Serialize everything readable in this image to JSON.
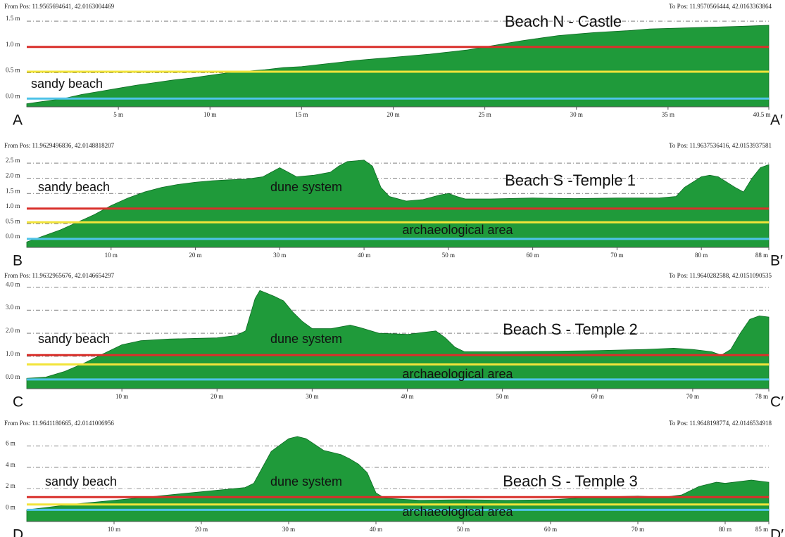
{
  "chart_data": [
    {
      "type": "area",
      "from_pos": "From Pos: 11.9565694641, 42.0163004469",
      "to_pos": "To Pos: 11.9570566444, 42.0163363864",
      "start_label": "A",
      "end_label": "A′",
      "annotations": [
        "Beach N - Castle",
        "sandy beach"
      ],
      "color": "#1f9a3a",
      "x": [
        0,
        1,
        2,
        3,
        4,
        5,
        6,
        7,
        8,
        9,
        10,
        11,
        12,
        13,
        14,
        15,
        16,
        17,
        18,
        19,
        20,
        21,
        22,
        23,
        24,
        25,
        26,
        27,
        28,
        29,
        30,
        31,
        32,
        33,
        34,
        35,
        36,
        37,
        38,
        39,
        40.5
      ],
      "values": [
        -0.1,
        -0.05,
        0.0,
        0.08,
        0.14,
        0.2,
        0.26,
        0.31,
        0.36,
        0.4,
        0.45,
        0.5,
        0.53,
        0.56,
        0.6,
        0.62,
        0.66,
        0.7,
        0.74,
        0.77,
        0.8,
        0.83,
        0.86,
        0.9,
        0.94,
        1.0,
        1.06,
        1.12,
        1.17,
        1.22,
        1.25,
        1.28,
        1.3,
        1.32,
        1.35,
        1.36,
        1.37,
        1.38,
        1.39,
        1.4,
        1.42
      ],
      "reference_lines": [
        {
          "value": 1.0,
          "color": "#d9302b"
        },
        {
          "value": 0.52,
          "color": "#f2e43a"
        },
        {
          "value": 0.0,
          "color": "#4fc3e8"
        }
      ],
      "xlim": [
        0,
        40.5
      ],
      "ylim": [
        -0.16,
        1.61
      ],
      "xticks": [
        {
          "value": 5,
          "label": "5 m"
        },
        {
          "value": 10,
          "label": "10 m"
        },
        {
          "value": 15,
          "label": "15 m"
        },
        {
          "value": 20,
          "label": "20 m"
        },
        {
          "value": 25,
          "label": "25 m"
        },
        {
          "value": 30,
          "label": "30 m"
        },
        {
          "value": 35,
          "label": "35 m"
        },
        {
          "value": 40.5,
          "label": "40.5 m"
        }
      ],
      "yticks": [
        {
          "value": 1.5,
          "label": "1.5 m"
        },
        {
          "value": 1.0,
          "label": "1.0 m"
        },
        {
          "value": 0.5,
          "label": "0.5 m"
        },
        {
          "value": 0.0,
          "label": "0.0 m"
        }
      ]
    },
    {
      "type": "area",
      "from_pos": "From Pos: 11.9629496836, 42.0148818207",
      "to_pos": "To Pos: 11.9637536416, 42.0153937581",
      "start_label": "B",
      "end_label": "B′",
      "annotations": [
        "sandy beach",
        "dune system",
        "Beach S -Temple 1",
        "archaeological area"
      ],
      "color": "#1f9a3a",
      "x": [
        0,
        2,
        4,
        6,
        8,
        10,
        12,
        14,
        16,
        18,
        20,
        22,
        24,
        26,
        28,
        30,
        31,
        32,
        34,
        36,
        37,
        38,
        40,
        41,
        42,
        43,
        45,
        47,
        49,
        50,
        51,
        52,
        55,
        60,
        65,
        70,
        75,
        77,
        78,
        80,
        81,
        82,
        84,
        85,
        86,
        87,
        88
      ],
      "values": [
        -0.1,
        0.1,
        0.3,
        0.55,
        0.8,
        1.1,
        1.35,
        1.55,
        1.7,
        1.8,
        1.87,
        1.92,
        1.95,
        1.97,
        2.05,
        2.35,
        2.2,
        2.05,
        2.1,
        2.2,
        2.4,
        2.55,
        2.6,
        2.4,
        1.7,
        1.4,
        1.25,
        1.3,
        1.45,
        1.5,
        1.4,
        1.32,
        1.32,
        1.35,
        1.33,
        1.35,
        1.35,
        1.4,
        1.7,
        2.05,
        2.1,
        2.05,
        1.7,
        1.55,
        2.0,
        2.35,
        2.45
      ],
      "reference_lines": [
        {
          "value": 1.0,
          "color": "#d9302b"
        },
        {
          "value": 0.55,
          "color": "#f2e43a"
        },
        {
          "value": 0.0,
          "color": "#4fc3e8"
        }
      ],
      "xlim": [
        0,
        88
      ],
      "ylim": [
        -0.28,
        2.78
      ],
      "xticks": [
        {
          "value": 10,
          "label": "10 m"
        },
        {
          "value": 20,
          "label": "20 m"
        },
        {
          "value": 30,
          "label": "30 m"
        },
        {
          "value": 40,
          "label": "40 m"
        },
        {
          "value": 50,
          "label": "50 m"
        },
        {
          "value": 60,
          "label": "60 m"
        },
        {
          "value": 70,
          "label": "70 m"
        },
        {
          "value": 80,
          "label": "80 m"
        },
        {
          "value": 88,
          "label": "88 m"
        }
      ],
      "yticks": [
        {
          "value": 2.5,
          "label": "2.5 m"
        },
        {
          "value": 2.0,
          "label": "2.0 m"
        },
        {
          "value": 1.5,
          "label": "1.5 m"
        },
        {
          "value": 1.0,
          "label": "1.0 m"
        },
        {
          "value": 0.5,
          "label": "0.5 m"
        },
        {
          "value": 0.0,
          "label": "0.0 m"
        }
      ]
    },
    {
      "type": "area",
      "from_pos": "From Pos: 11.9632965676, 42.0146654297",
      "to_pos": "To Pos: 11.9640282588, 42.0151090535",
      "start_label": "C",
      "end_label": "C′",
      "annotations": [
        "sandy beach",
        "dune system",
        "Beach S - Temple 2",
        "archaeological area"
      ],
      "color": "#1f9a3a",
      "x": [
        0,
        2,
        4,
        6,
        8,
        10,
        12,
        15,
        18,
        20,
        22,
        23,
        24,
        24.5,
        26,
        27,
        28,
        29,
        30,
        32,
        34,
        35,
        37,
        40,
        42,
        43,
        44,
        45,
        46,
        50,
        55,
        60,
        65,
        68,
        70,
        72,
        73,
        74,
        75,
        76,
        77,
        78
      ],
      "values": [
        0.05,
        0.1,
        0.35,
        0.7,
        1.1,
        1.5,
        1.68,
        1.75,
        1.78,
        1.8,
        1.9,
        2.1,
        3.5,
        3.85,
        3.6,
        3.4,
        2.9,
        2.5,
        2.2,
        2.2,
        2.35,
        2.25,
        2.0,
        1.95,
        2.05,
        2.1,
        1.8,
        1.4,
        1.2,
        1.2,
        1.22,
        1.25,
        1.3,
        1.35,
        1.3,
        1.2,
        1.05,
        1.3,
        2.0,
        2.6,
        2.75,
        2.7
      ],
      "reference_lines": [
        {
          "value": 1.05,
          "color": "#d9302b"
        },
        {
          "value": 0.65,
          "color": "#f2e43a"
        },
        {
          "value": 0.0,
          "color": "#4fc3e8"
        }
      ],
      "xlim": [
        0,
        78
      ],
      "ylim": [
        -0.4,
        4.1
      ],
      "xticks": [
        {
          "value": 10,
          "label": "10 m"
        },
        {
          "value": 20,
          "label": "20 m"
        },
        {
          "value": 30,
          "label": "30 m"
        },
        {
          "value": 40,
          "label": "40 m"
        },
        {
          "value": 50,
          "label": "50 m"
        },
        {
          "value": 60,
          "label": "60 m"
        },
        {
          "value": 70,
          "label": "70 m"
        },
        {
          "value": 78,
          "label": "78 m"
        }
      ],
      "yticks": [
        {
          "value": 4.0,
          "label": "4.0 m"
        },
        {
          "value": 3.0,
          "label": "3.0 m"
        },
        {
          "value": 2.0,
          "label": "2.0 m"
        },
        {
          "value": 1.0,
          "label": "1.0 m"
        },
        {
          "value": 0.0,
          "label": "0.0 m"
        }
      ]
    },
    {
      "type": "area",
      "from_pos": "From Pos: 11.9641180665, 42.0141006956",
      "to_pos": "To Pos: 11.9648198774, 42.0146534918",
      "start_label": "D",
      "end_label": "D′",
      "annotations": [
        "sandy beach",
        "dune system",
        "Beach S - Temple 3",
        "archaeological area"
      ],
      "color": "#1f9a3a",
      "x": [
        0,
        2,
        5,
        10,
        15,
        20,
        25,
        26,
        27,
        28,
        30,
        31,
        32,
        34,
        36,
        37,
        38,
        39,
        40,
        41,
        45,
        50,
        55,
        60,
        65,
        70,
        73,
        75,
        77,
        79,
        80,
        82,
        83,
        85
      ],
      "values": [
        0.0,
        0.2,
        0.5,
        0.9,
        1.3,
        1.7,
        2.1,
        2.5,
        4.0,
        5.5,
        6.7,
        6.9,
        6.7,
        5.6,
        5.2,
        4.8,
        4.3,
        3.5,
        1.6,
        1.1,
        0.9,
        0.95,
        0.9,
        0.95,
        1.2,
        1.3,
        1.2,
        1.4,
        2.2,
        2.6,
        2.5,
        2.7,
        2.8,
        2.6
      ],
      "reference_lines": [
        {
          "value": 1.2,
          "color": "#d9302b"
        },
        {
          "value": 0.5,
          "color": "#f2e43a"
        },
        {
          "value": 0.0,
          "color": "#4fc3e8"
        }
      ],
      "xlim": [
        0,
        85
      ],
      "ylim": [
        -1.1,
        7.3
      ],
      "xticks": [
        {
          "value": 10,
          "label": "10 m"
        },
        {
          "value": 20,
          "label": "20 m"
        },
        {
          "value": 30,
          "label": "30 m"
        },
        {
          "value": 40,
          "label": "40 m"
        },
        {
          "value": 50,
          "label": "50 m"
        },
        {
          "value": 60,
          "label": "60 m"
        },
        {
          "value": 70,
          "label": "70 m"
        },
        {
          "value": 80,
          "label": "80 m"
        },
        {
          "value": 85,
          "label": "85 m"
        }
      ],
      "yticks": [
        {
          "value": 6,
          "label": "6 m"
        },
        {
          "value": 4,
          "label": "4 m"
        },
        {
          "value": 2,
          "label": "2 m"
        },
        {
          "value": 0,
          "label": "0 m"
        }
      ]
    }
  ]
}
